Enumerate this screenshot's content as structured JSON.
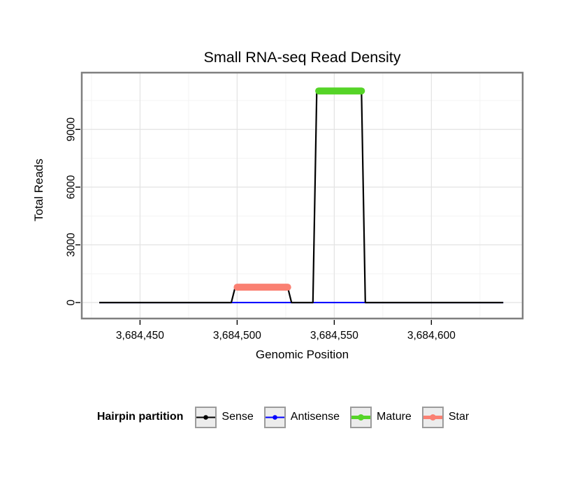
{
  "chart_data": {
    "type": "line",
    "title": "Small RNA-seq Read Density",
    "xlabel": "Genomic Position",
    "ylabel": "Total Reads",
    "xlim": [
      3684420,
      3684647
    ],
    "ylim": [
      -830,
      11950
    ],
    "x_ticks": [
      {
        "value": 3684450,
        "label": "3,684,450"
      },
      {
        "value": 3684500,
        "label": "3,684,500"
      },
      {
        "value": 3684550,
        "label": "3,684,550"
      },
      {
        "value": 3684600,
        "label": "3,684,600"
      }
    ],
    "y_ticks": [
      {
        "value": 0,
        "label": "0"
      },
      {
        "value": 3000,
        "label": "3000"
      },
      {
        "value": 6000,
        "label": "6000"
      },
      {
        "value": 9000,
        "label": "9000"
      }
    ],
    "x_minor_step": 25,
    "y_minor_step": 1500,
    "grid": {
      "major_color": "#e3e3e3",
      "minor_color": "#f3f3f3"
    },
    "panel_border_color": "#7f7f7f",
    "series": [
      {
        "name": "Antisense",
        "color": "#0000ff",
        "width": 2,
        "points": [
          [
            3684429,
            0
          ],
          [
            3684637,
            0
          ]
        ]
      },
      {
        "name": "Sense",
        "color": "#000000",
        "width": 2.2,
        "points": [
          [
            3684429,
            0
          ],
          [
            3684497,
            0
          ],
          [
            3684499,
            800
          ],
          [
            3684526,
            800
          ],
          [
            3684528,
            0
          ],
          [
            3684539,
            0
          ],
          [
            3684541,
            11000
          ],
          [
            3684564,
            11000
          ],
          [
            3684566,
            0
          ],
          [
            3684637,
            0
          ]
        ]
      },
      {
        "name": "Star",
        "color": "#fa8072",
        "width": 10,
        "cap": "round",
        "points": [
          [
            3684500,
            800
          ],
          [
            3684526,
            800
          ]
        ]
      },
      {
        "name": "Mature",
        "color": "#55d427",
        "width": 10,
        "cap": "round",
        "points": [
          [
            3684542,
            11000
          ],
          [
            3684564,
            11000
          ]
        ]
      }
    ],
    "legend": {
      "title": "Hairpin partition",
      "items": [
        {
          "label": "Sense",
          "color": "#000000",
          "lwd": 2
        },
        {
          "label": "Antisense",
          "color": "#0000ff",
          "lwd": 2
        },
        {
          "label": "Mature",
          "color": "#55d427",
          "lwd": 5
        },
        {
          "label": "Star",
          "color": "#fa8072",
          "lwd": 5
        }
      ]
    }
  }
}
